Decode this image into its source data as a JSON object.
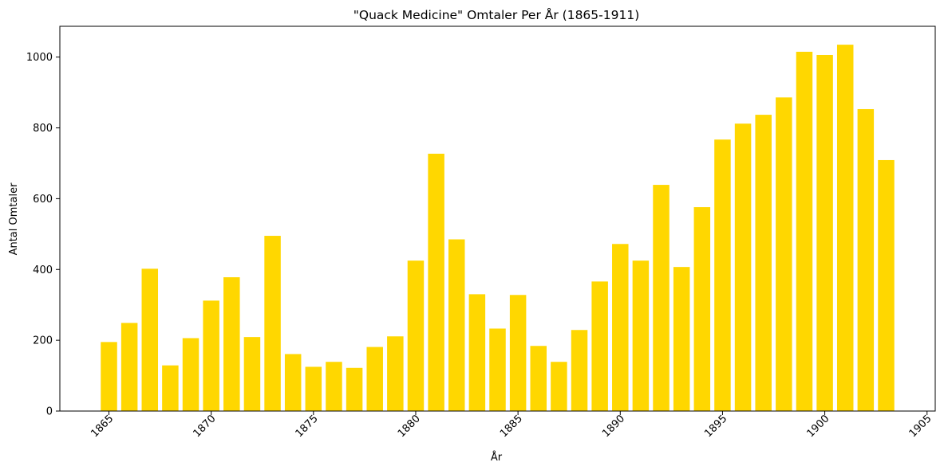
{
  "chart_data": {
    "type": "bar",
    "title": "\"Quack Medicine\" Omtaler Per År (1865-1911)",
    "xlabel": "År",
    "ylabel": "Antal Omtaler",
    "x": [
      1865,
      1866,
      1867,
      1868,
      1869,
      1870,
      1871,
      1872,
      1873,
      1874,
      1875,
      1876,
      1877,
      1878,
      1879,
      1880,
      1881,
      1882,
      1883,
      1884,
      1885,
      1886,
      1887,
      1888,
      1889,
      1890,
      1891,
      1892,
      1893,
      1894,
      1895,
      1896,
      1897,
      1898,
      1899,
      1900,
      1901,
      1902,
      1903
    ],
    "values": [
      195,
      249,
      402,
      129,
      206,
      312,
      378,
      209,
      495,
      161,
      125,
      139,
      122,
      181,
      211,
      425,
      727,
      485,
      330,
      233,
      328,
      184,
      139,
      229,
      366,
      472,
      425,
      639,
      407,
      576,
      767,
      812,
      837,
      886,
      1015,
      1006,
      1035,
      853,
      709
    ],
    "xlim": [
      1862.6,
      1905.4
    ],
    "ylim": [
      0,
      1087
    ],
    "xticks": [
      1865,
      1870,
      1875,
      1880,
      1885,
      1890,
      1895,
      1900,
      1905
    ],
    "yticks": [
      0,
      200,
      400,
      600,
      800,
      1000
    ],
    "bar_color": "#ffd700",
    "grid": false,
    "legend": "none"
  }
}
